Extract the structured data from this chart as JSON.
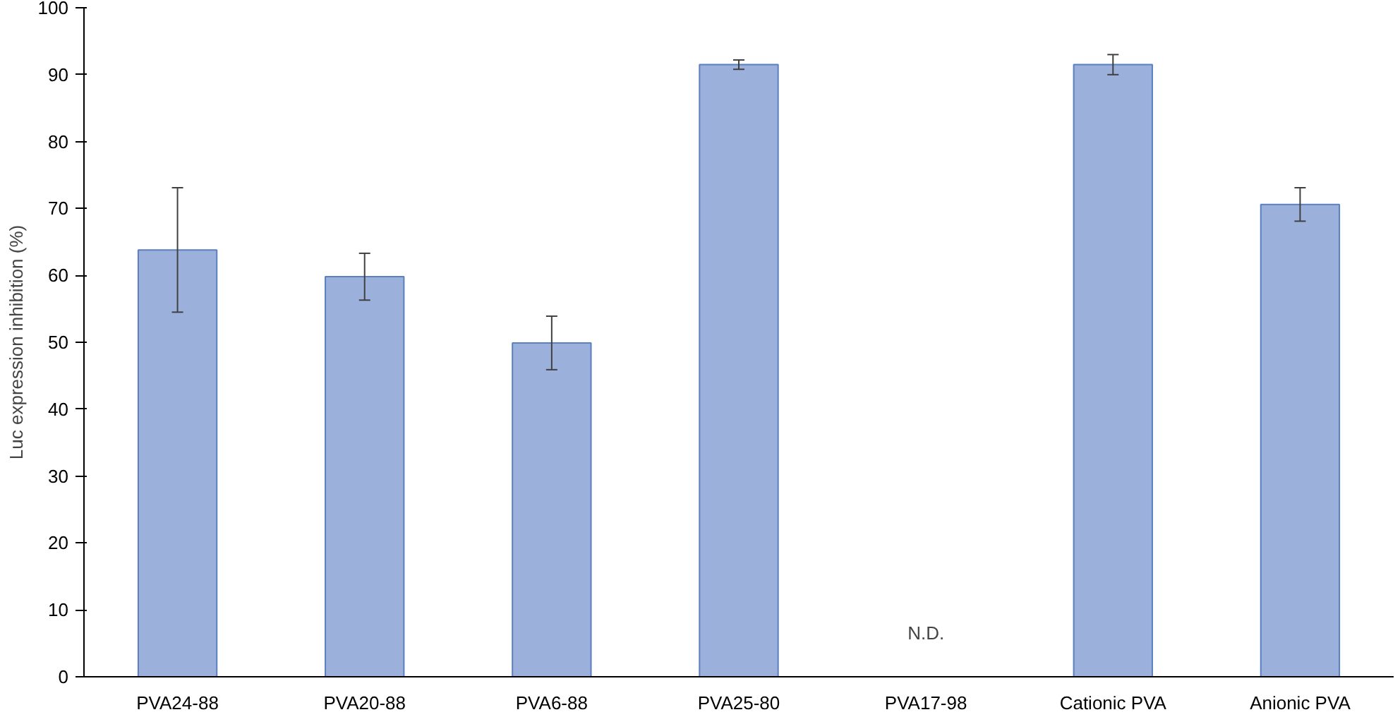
{
  "chart_data": {
    "type": "bar",
    "ylabel": "Luc expression inhibition (%)",
    "categories": [
      "PVA24-88",
      "PVA20-88",
      "PVA6-88",
      "PVA25-80",
      "PVA17-98",
      "Cationic PVA",
      "Anionic PVA"
    ],
    "values": [
      63.8,
      59.8,
      49.9,
      91.5,
      null,
      91.5,
      70.6
    ],
    "errors": [
      9.3,
      3.5,
      4,
      0.7,
      null,
      1.5,
      2.5
    ],
    "color": "#9bb0da",
    "ylim": [
      0,
      100
    ],
    "yticks": [
      0,
      10,
      20,
      30,
      40,
      50,
      60,
      70,
      80,
      90,
      100
    ],
    "annotations": [
      "N.D."
    ],
    "grid": false
  }
}
